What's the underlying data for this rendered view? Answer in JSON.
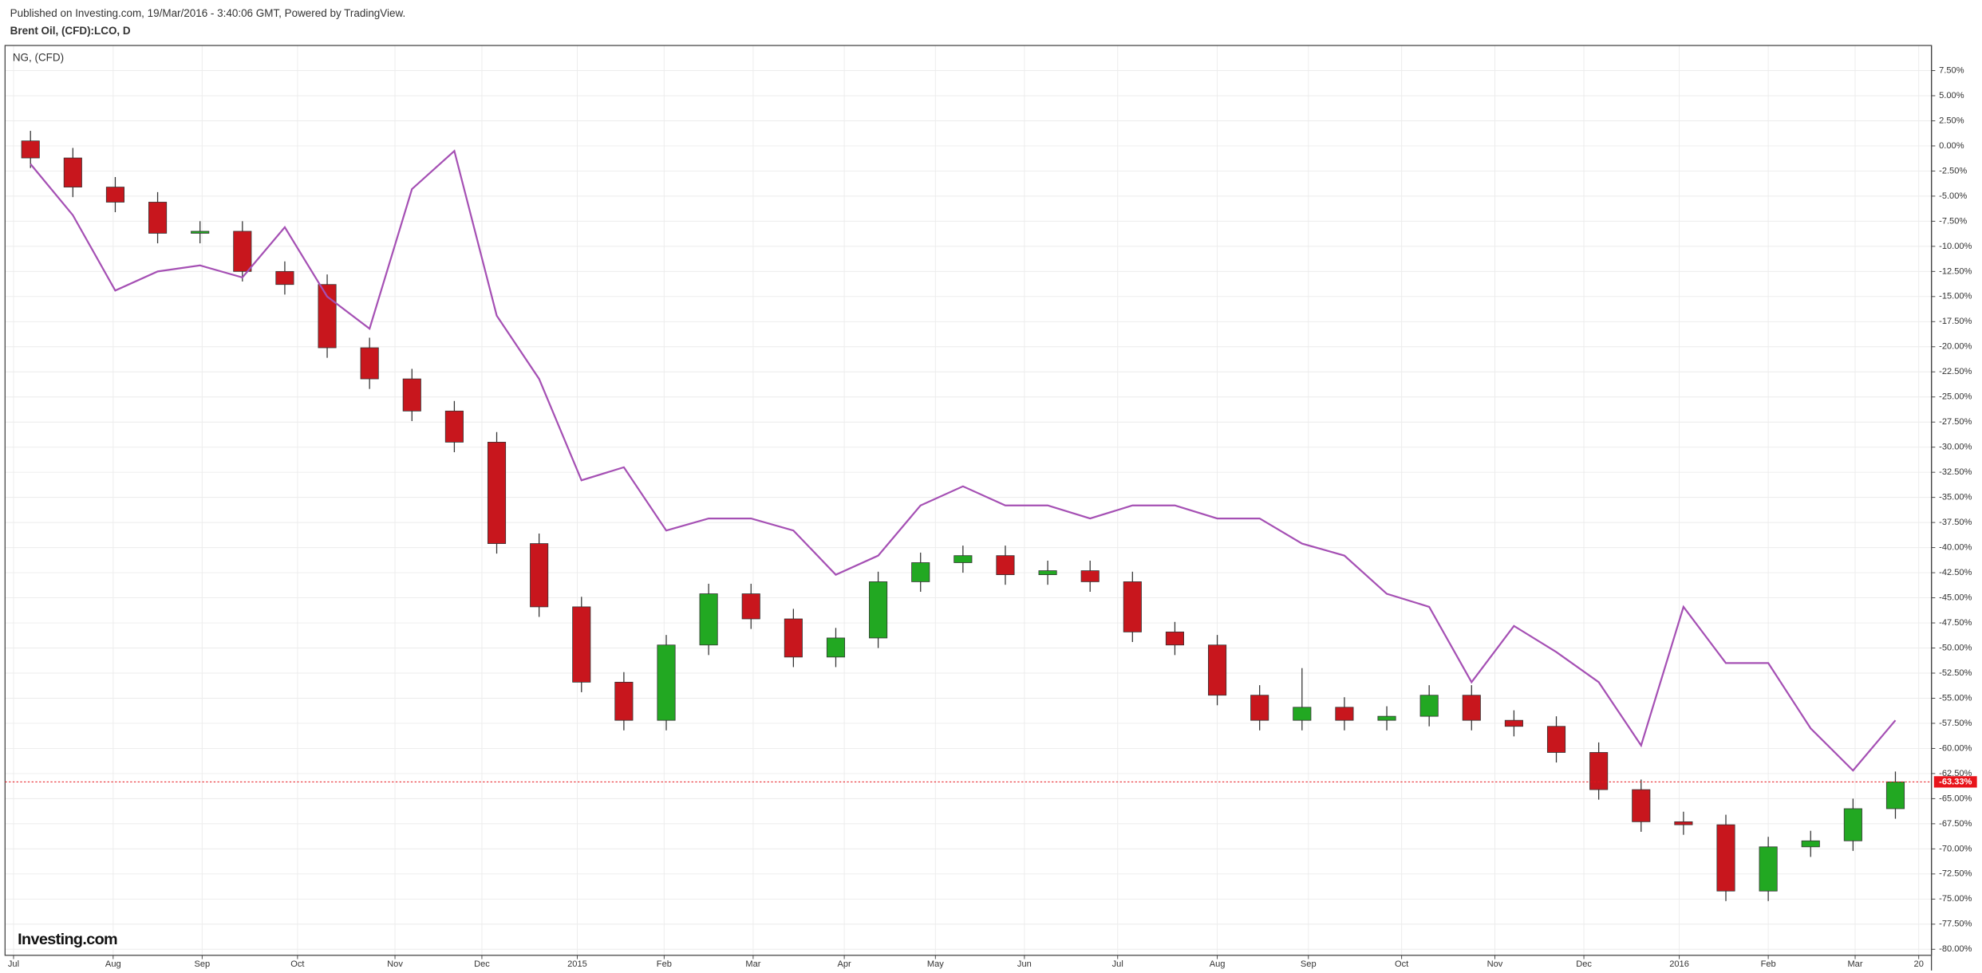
{
  "header": {
    "published": "Published on Investing.com, 19/Mar/2016 - 3:40:06 GMT, Powered by TradingView."
  },
  "logo": "Investing.com",
  "chart_data": {
    "type": "candlestick",
    "title": "Brent Oil, (CFD):LCO, D",
    "xlim": [
      -0.2,
      90.7
    ],
    "ylim": [
      -80.6,
      10
    ],
    "grid": true,
    "xticks": [
      {
        "value": 0.2,
        "label": "Jul"
      },
      {
        "value": 4.9,
        "label": "Aug"
      },
      {
        "value": 9.1,
        "label": "Sep"
      },
      {
        "value": 13.6,
        "label": "Oct"
      },
      {
        "value": 18.2,
        "label": "Nov"
      },
      {
        "value": 22.3,
        "label": "Dec"
      },
      {
        "value": 26.8,
        "label": "2015"
      },
      {
        "value": 30.9,
        "label": "Feb"
      },
      {
        "value": 35.1,
        "label": "Mar"
      },
      {
        "value": 39.4,
        "label": "Apr"
      },
      {
        "value": 43.7,
        "label": "May"
      },
      {
        "value": 47.9,
        "label": "Jun"
      },
      {
        "value": 52.3,
        "label": "Jul"
      },
      {
        "value": 57.0,
        "label": "Aug"
      },
      {
        "value": 61.3,
        "label": "Sep"
      },
      {
        "value": 65.7,
        "label": "Oct"
      },
      {
        "value": 70.1,
        "label": "Nov"
      },
      {
        "value": 74.3,
        "label": "Dec"
      },
      {
        "value": 78.8,
        "label": "2016"
      },
      {
        "value": 83.0,
        "label": "Feb"
      },
      {
        "value": 87.1,
        "label": "Mar"
      },
      {
        "value": 90.1,
        "label": "20"
      }
    ],
    "yticks": [
      {
        "value": 7.5,
        "label": "7.50%"
      },
      {
        "value": 5,
        "label": "5.00%"
      },
      {
        "value": 2.5,
        "label": "2.50%"
      },
      {
        "value": 0,
        "label": "0.00%"
      },
      {
        "value": -2.5,
        "label": "-2.50%"
      },
      {
        "value": -5,
        "label": "-5.00%"
      },
      {
        "value": -7.5,
        "label": "-7.50%"
      },
      {
        "value": -10,
        "label": "-10.00%"
      },
      {
        "value": -12.5,
        "label": "-12.50%"
      },
      {
        "value": -15,
        "label": "-15.00%"
      },
      {
        "value": -17.5,
        "label": "-17.50%"
      },
      {
        "value": -20,
        "label": "-20.00%"
      },
      {
        "value": -22.5,
        "label": "-22.50%"
      },
      {
        "value": -25,
        "label": "-25.00%"
      },
      {
        "value": -27.5,
        "label": "-27.50%"
      },
      {
        "value": -30,
        "label": "-30.00%"
      },
      {
        "value": -32.5,
        "label": "-32.50%"
      },
      {
        "value": -35,
        "label": "-35.00%"
      },
      {
        "value": -37.5,
        "label": "-37.50%"
      },
      {
        "value": -40,
        "label": "-40.00%"
      },
      {
        "value": -42.5,
        "label": "-42.50%"
      },
      {
        "value": -45,
        "label": "-45.00%"
      },
      {
        "value": -47.5,
        "label": "-47.50%"
      },
      {
        "value": -50,
        "label": "-50.00%"
      },
      {
        "value": -52.5,
        "label": "-52.50%"
      },
      {
        "value": -55,
        "label": "-55.00%"
      },
      {
        "value": -57.5,
        "label": "-57.50%"
      },
      {
        "value": -60,
        "label": "-60.00%"
      },
      {
        "value": -62.5,
        "label": "-62.50%"
      },
      {
        "value": -65,
        "label": "-65.00%"
      },
      {
        "value": -67.5,
        "label": "-67.50%"
      },
      {
        "value": -70,
        "label": "-70.00%"
      },
      {
        "value": -72.5,
        "label": "-72.50%"
      },
      {
        "value": -75,
        "label": "-75.00%"
      },
      {
        "value": -77.5,
        "label": "-77.50%"
      },
      {
        "value": -80,
        "label": "-80.00%"
      }
    ],
    "x": [
      1,
      3,
      5,
      7,
      9,
      11,
      13,
      15,
      17,
      19,
      21,
      23,
      25,
      27,
      29,
      31,
      33,
      35,
      37,
      39,
      41,
      43,
      45,
      47,
      49,
      51,
      53,
      55,
      57,
      59,
      61,
      63,
      65,
      67,
      69,
      71,
      73,
      75,
      77,
      79,
      81,
      83,
      85,
      87,
      89
    ],
    "series": [
      {
        "type": "candlestick",
        "up_color": "#22a822",
        "down_color": "#c8161d",
        "open": [
          0.5,
          -1.2,
          -4.1,
          -5.6,
          -8.7,
          -8.5,
          -12.5,
          -13.8,
          -20.1,
          -23.2,
          -26.4,
          -29.5,
          -39.6,
          -45.9,
          -53.4,
          -57.2,
          -49.7,
          -44.6,
          -47.1,
          -50.9,
          -49.0,
          -43.4,
          -41.5,
          -40.8,
          -42.7,
          -42.3,
          -43.4,
          -48.4,
          -49.7,
          -54.7,
          -57.2,
          -55.9,
          -57.2,
          -56.8,
          -54.7,
          -57.2,
          -57.8,
          -60.4,
          -64.1,
          -67.3,
          -67.6,
          -74.2,
          -69.8,
          -69.2,
          -66.0
        ],
        "high": [
          1.5,
          -0.2,
          -3.1,
          -4.6,
          -7.5,
          -7.5,
          -11.5,
          -12.8,
          -19.1,
          -22.2,
          -25.4,
          -28.5,
          -38.6,
          -44.9,
          -52.4,
          -48.7,
          -43.6,
          -43.6,
          -46.1,
          -48.0,
          -42.4,
          -40.5,
          -39.8,
          -39.8,
          -41.3,
          -41.3,
          -42.4,
          -47.4,
          -48.7,
          -53.7,
          -52.0,
          -54.9,
          -55.8,
          -53.7,
          -53.7,
          -56.2,
          -56.8,
          -59.4,
          -63.1,
          -66.3,
          -66.6,
          -68.8,
          -68.2,
          -65.0,
          -62.3
        ],
        "low": [
          -2.2,
          -5.1,
          -6.6,
          -9.7,
          -9.7,
          -13.5,
          -14.8,
          -21.1,
          -24.2,
          -27.4,
          -30.5,
          -40.6,
          -46.9,
          -54.4,
          -58.2,
          -58.2,
          -50.7,
          -48.1,
          -51.9,
          -51.9,
          -50.0,
          -44.4,
          -42.5,
          -43.7,
          -43.7,
          -44.4,
          -49.4,
          -50.7,
          -55.7,
          -58.2,
          -58.2,
          -58.2,
          -58.2,
          -57.8,
          -58.2,
          -58.8,
          -61.4,
          -65.1,
          -68.3,
          -68.6,
          -75.2,
          -75.2,
          -70.8,
          -70.2,
          -67.0
        ],
        "close": [
          -1.2,
          -4.1,
          -5.6,
          -8.7,
          -8.5,
          -12.5,
          -13.8,
          -20.1,
          -23.2,
          -26.4,
          -29.5,
          -39.6,
          -45.9,
          -53.4,
          -57.2,
          -49.7,
          -44.6,
          -47.1,
          -50.9,
          -49.0,
          -43.4,
          -41.5,
          -40.8,
          -42.7,
          -42.3,
          -43.4,
          -48.4,
          -49.7,
          -54.7,
          -57.2,
          -55.9,
          -57.2,
          -56.8,
          -54.7,
          -57.2,
          -57.8,
          -60.4,
          -64.1,
          -67.3,
          -67.6,
          -74.2,
          -69.8,
          -69.2,
          -66.0,
          -63.33
        ]
      },
      {
        "type": "line",
        "name": "NG,  (CFD)",
        "color": "#a550b4",
        "values": [
          -1.8,
          -6.9,
          -14.4,
          -12.5,
          -11.9,
          -13.1,
          -8.1,
          -15.0,
          -18.2,
          -4.3,
          -0.5,
          -16.9,
          -23.2,
          -33.3,
          -32.0,
          -38.3,
          -37.1,
          -37.1,
          -38.3,
          -42.7,
          -40.8,
          -35.8,
          -33.9,
          -35.8,
          -35.8,
          -37.1,
          -35.8,
          -35.8,
          -37.1,
          -37.1,
          -39.6,
          -40.8,
          -44.6,
          -45.9,
          -53.4,
          -47.8,
          -50.4,
          -53.4,
          -59.7,
          -45.9,
          -51.5,
          -51.5,
          -58.0,
          -62.2,
          -57.2
        ]
      }
    ],
    "last_value": -63.33,
    "last_value_label": "-63.33%",
    "last_color": "#e8141b"
  }
}
